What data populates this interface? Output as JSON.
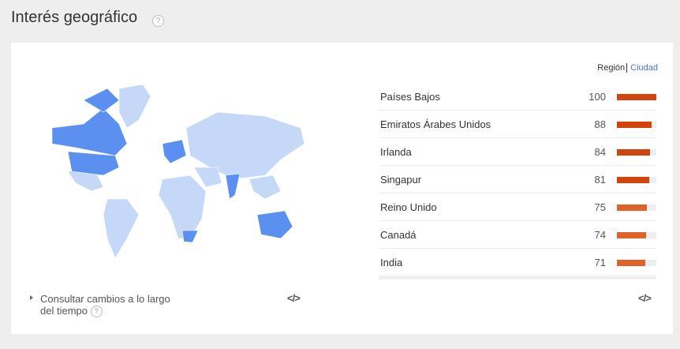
{
  "header": {
    "title": "Interés geográfico",
    "help_icon": "question-circle-icon"
  },
  "toggle": {
    "region": "Región",
    "city": "Ciudad"
  },
  "colors": {
    "bar_dark": "#d2430e",
    "bar_light": "#e0622a",
    "map_high": "#5b8ff0",
    "map_low": "#c6d8f7"
  },
  "regions": [
    {
      "name": "Países Bajos",
      "value": 100,
      "shade": "dark"
    },
    {
      "name": "Emiratos Árabes Unidos",
      "value": 88,
      "shade": "dark"
    },
    {
      "name": "Irlanda",
      "value": 84,
      "shade": "dark"
    },
    {
      "name": "Singapur",
      "value": 81,
      "shade": "dark"
    },
    {
      "name": "Reino Unido",
      "value": 75,
      "shade": "light"
    },
    {
      "name": "Canadá",
      "value": 74,
      "shade": "light"
    },
    {
      "name": "India",
      "value": 71,
      "shade": "light"
    }
  ],
  "footer": {
    "changes_link": "Consultar cambios a lo largo del tiempo",
    "embed_icon": "code-embed-icon",
    "embed_label": "</>"
  }
}
